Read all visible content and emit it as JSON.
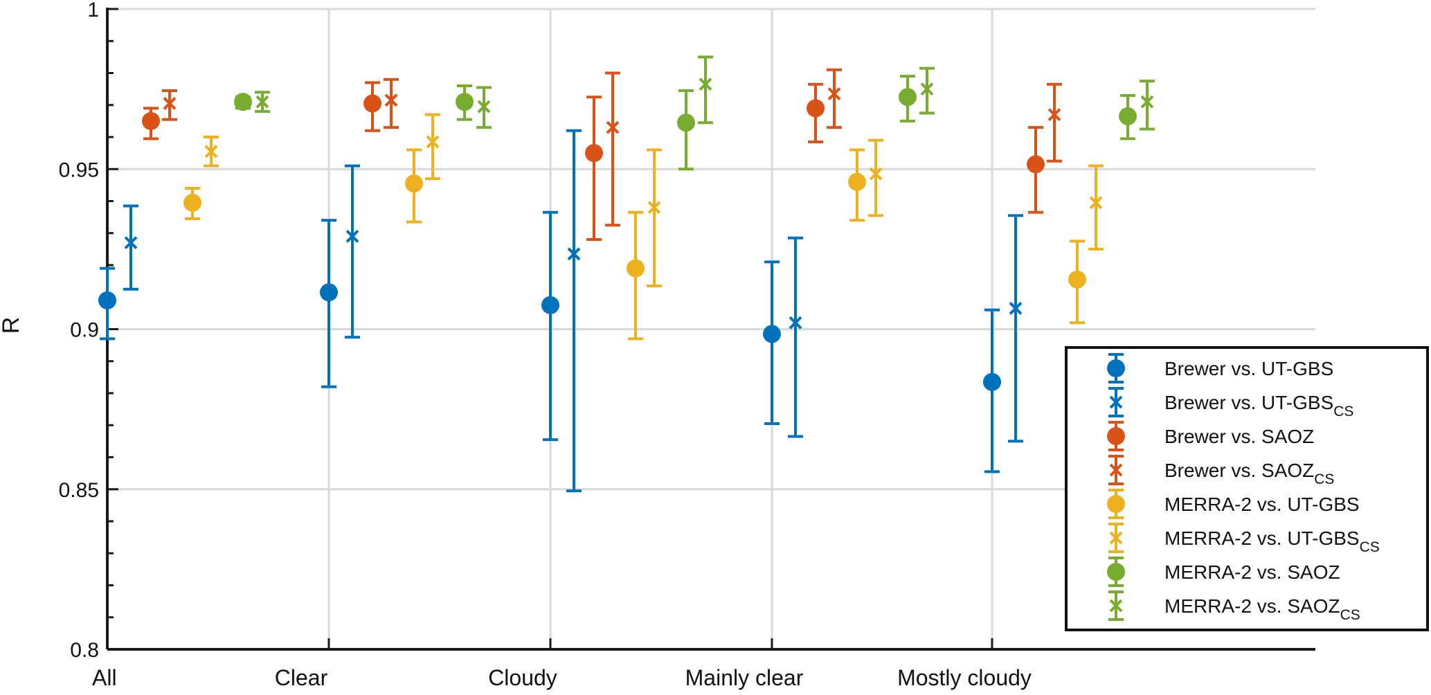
{
  "chart_data": {
    "type": "scatter",
    "title": "",
    "xlabel": "",
    "ylabel": "R",
    "ylim": [
      0.8,
      1.0
    ],
    "yticks": [
      "0.8",
      "0.85",
      "0.9",
      "0.95",
      "1"
    ],
    "categories": [
      "All",
      "Clear",
      "Cloudy",
      "Mainly clear",
      "Mostly cloudy"
    ],
    "grid": true,
    "legend_position": "bottom-right",
    "colors": {
      "blue": "#0072BD",
      "orange": "#D95319",
      "yellow": "#EDB120",
      "green": "#77AC30",
      "gridline": "#d9d9d9",
      "axis": "#1a1a1a"
    },
    "series": [
      {
        "name": "Brewer vs. UT-GBS",
        "name_sub": "",
        "marker": "circle",
        "color": "#0072BD",
        "values": [
          0.909,
          0.9115,
          0.9075,
          0.8985,
          0.8835
        ],
        "lower": [
          0.897,
          0.882,
          0.8655,
          0.8705,
          0.8555
        ],
        "upper": [
          0.919,
          0.934,
          0.9365,
          0.921,
          0.906
        ]
      },
      {
        "name": "Brewer vs. UT-GBS",
        "name_sub": "CS",
        "marker": "x",
        "color": "#0072BD",
        "values": [
          0.927,
          0.929,
          0.9235,
          0.902,
          0.9065
        ],
        "lower": [
          0.9125,
          0.8975,
          0.8495,
          0.8665,
          0.865
        ],
        "upper": [
          0.9385,
          0.951,
          0.962,
          0.9285,
          0.9355
        ]
      },
      {
        "name": "Brewer vs. SAOZ",
        "name_sub": "",
        "marker": "circle",
        "color": "#D95319",
        "values": [
          0.965,
          0.9705,
          0.955,
          0.969,
          0.9515
        ],
        "lower": [
          0.9595,
          0.962,
          0.928,
          0.9585,
          0.9365
        ],
        "upper": [
          0.969,
          0.977,
          0.9725,
          0.9765,
          0.963
        ]
      },
      {
        "name": "Brewer vs. SAOZ",
        "name_sub": "CS",
        "marker": "x",
        "color": "#D95319",
        "values": [
          0.9705,
          0.9715,
          0.963,
          0.9735,
          0.967
        ],
        "lower": [
          0.9655,
          0.963,
          0.9325,
          0.963,
          0.9525
        ],
        "upper": [
          0.9745,
          0.978,
          0.98,
          0.981,
          0.9765
        ]
      },
      {
        "name": "MERRA-2 vs. UT-GBS",
        "name_sub": "",
        "marker": "circle",
        "color": "#EDB120",
        "values": [
          0.9395,
          0.9455,
          0.919,
          0.946,
          0.9155
        ],
        "lower": [
          0.9345,
          0.9335,
          0.897,
          0.934,
          0.902
        ],
        "upper": [
          0.944,
          0.956,
          0.9365,
          0.956,
          0.9275
        ]
      },
      {
        "name": "MERRA-2 vs. UT-GBS",
        "name_sub": "CS",
        "marker": "x",
        "color": "#EDB120",
        "values": [
          0.9555,
          0.9585,
          0.938,
          0.9485,
          0.9395
        ],
        "lower": [
          0.951,
          0.947,
          0.9135,
          0.9355,
          0.925
        ],
        "upper": [
          0.96,
          0.967,
          0.956,
          0.959,
          0.951
        ]
      },
      {
        "name": "MERRA-2 vs. SAOZ",
        "name_sub": "",
        "marker": "circle",
        "color": "#77AC30",
        "values": [
          0.971,
          0.971,
          0.9645,
          0.9725,
          0.9665
        ],
        "lower": [
          0.969,
          0.9655,
          0.95,
          0.965,
          0.9595
        ],
        "upper": [
          0.9725,
          0.976,
          0.9745,
          0.979,
          0.973
        ]
      },
      {
        "name": "MERRA-2 vs. SAOZ",
        "name_sub": "CS",
        "marker": "x",
        "color": "#77AC30",
        "values": [
          0.971,
          0.9695,
          0.9765,
          0.975,
          0.971
        ],
        "lower": [
          0.968,
          0.963,
          0.9645,
          0.9675,
          0.9625
        ],
        "upper": [
          0.974,
          0.9755,
          0.985,
          0.9815,
          0.9775
        ]
      }
    ]
  }
}
